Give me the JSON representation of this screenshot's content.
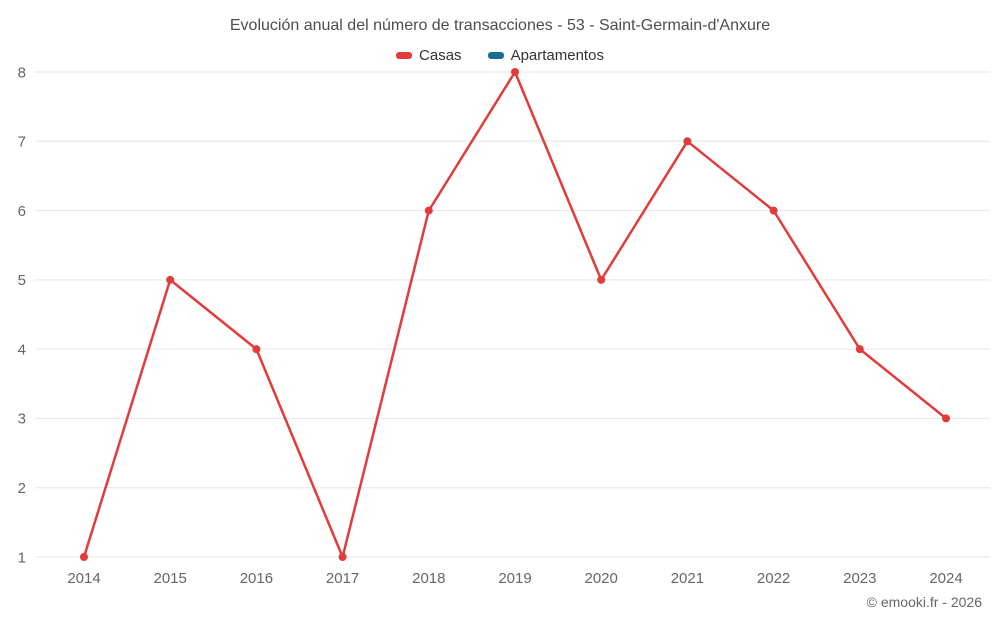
{
  "title": "Evolución anual del número de transacciones - 53 - Saint-Germain-d'Anxure",
  "legend": [
    {
      "label": "Casas",
      "color": "#e23b3b"
    },
    {
      "label": "Apartamentos",
      "color": "#1b6d99"
    }
  ],
  "footer": "© emooki.fr - 2026",
  "colors": {
    "grid": "#e6e6e6",
    "axis_label": "#666666",
    "title": "#4d4d4d"
  },
  "chart_data": {
    "type": "line",
    "categories": [
      "2014",
      "2015",
      "2016",
      "2017",
      "2018",
      "2019",
      "2020",
      "2021",
      "2022",
      "2023",
      "2024"
    ],
    "series": [
      {
        "name": "Casas",
        "color": "#e23b3b",
        "values": [
          1,
          5,
          4,
          1,
          6,
          8,
          5,
          7,
          6,
          4,
          3
        ]
      },
      {
        "name": "Apartamentos",
        "color": "#1b6d99",
        "values": []
      }
    ],
    "title": "Evolución anual del número de transacciones - 53 - Saint-Germain-d'Anxure",
    "xlabel": "",
    "ylabel": "",
    "ylim": [
      1,
      8
    ],
    "yticks": [
      1,
      2,
      3,
      4,
      5,
      6,
      7,
      8
    ],
    "grid": true,
    "legend_position": "top"
  }
}
